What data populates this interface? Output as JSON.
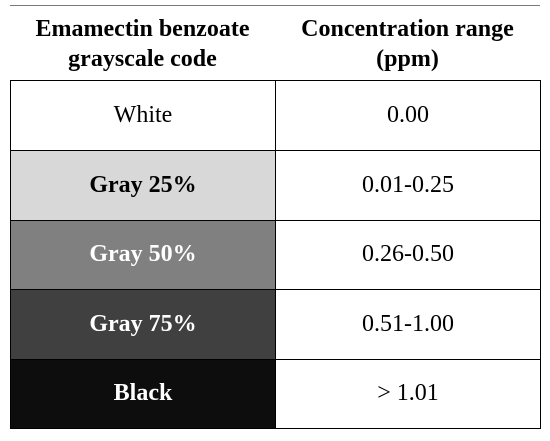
{
  "table": {
    "headers": {
      "code_line1": "Emamectin benzoate",
      "code_line2": "grayscale code",
      "range_line1": "Concentration range",
      "range_line2": "(ppm)"
    },
    "rows": [
      {
        "code": "White",
        "range": "0.00",
        "swatch": "#ffffff",
        "text_color": "#000000",
        "bold": false
      },
      {
        "code": "Gray 25%",
        "range": "0.01-0.25",
        "swatch": "#d8d8d8",
        "text_color": "#000000",
        "bold": true
      },
      {
        "code": "Gray 50%",
        "range": "0.26-0.50",
        "swatch": "#808080",
        "text_color": "#ffffff",
        "bold": true
      },
      {
        "code": "Gray 75%",
        "range": "0.51-1.00",
        "swatch": "#404040",
        "text_color": "#ffffff",
        "bold": true
      },
      {
        "code": "Black",
        "range": "> 1.01",
        "swatch": "#0d0d0d",
        "text_color": "#ffffff",
        "bold": true
      }
    ]
  }
}
